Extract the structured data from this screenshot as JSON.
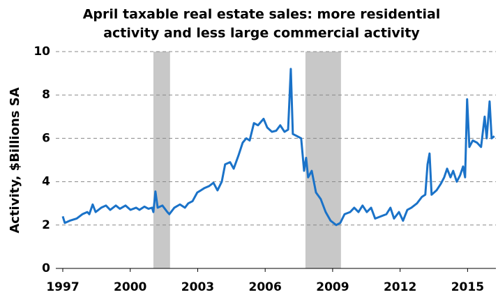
{
  "chart_data": {
    "type": "line",
    "title": [
      "April taxable real estate sales: more residential",
      "activity and less large commercial activity"
    ],
    "y_label": "Activity, $Billions SA",
    "x": [
      1997.0,
      1997.09,
      1997.31,
      1997.62,
      1997.87,
      1998.09,
      1998.18,
      1998.33,
      1998.46,
      1998.71,
      1998.92,
      1999.11,
      1999.36,
      1999.54,
      1999.79,
      2000.01,
      2000.26,
      2000.41,
      2000.63,
      2000.81,
      2000.97,
      2001.03,
      2001.12,
      2001.22,
      2001.43,
      2001.65,
      2001.74,
      2001.96,
      2002.21,
      2002.43,
      2002.58,
      2002.77,
      2002.98,
      2003.14,
      2003.29,
      2003.51,
      2003.7,
      2003.88,
      2004.07,
      2004.22,
      2004.44,
      2004.6,
      2004.81,
      2005.0,
      2005.16,
      2005.31,
      2005.5,
      2005.68,
      2005.93,
      2006.09,
      2006.3,
      2006.49,
      2006.67,
      2006.86,
      2007.02,
      2007.14,
      2007.23,
      2007.42,
      2007.6,
      2007.73,
      2007.82,
      2007.91,
      2008.07,
      2008.26,
      2008.47,
      2008.69,
      2008.91,
      2009.16,
      2009.34,
      2009.53,
      2009.78,
      2009.96,
      2010.15,
      2010.33,
      2010.52,
      2010.71,
      2010.89,
      2011.14,
      2011.39,
      2011.57,
      2011.73,
      2011.95,
      2012.13,
      2012.32,
      2012.5,
      2012.75,
      2012.97,
      2013.12,
      2013.22,
      2013.31,
      2013.4,
      2013.62,
      2013.81,
      2013.96,
      2014.09,
      2014.24,
      2014.36,
      2014.52,
      2014.67,
      2014.8,
      2014.89,
      2014.98,
      2015.08,
      2015.23,
      2015.42,
      2015.6,
      2015.76,
      2015.85,
      2015.98,
      2016.07,
      2016.19
    ],
    "series": [
      {
        "color": "#1a72c8",
        "values": [
          2.4,
          2.1,
          2.2,
          2.3,
          2.5,
          2.6,
          2.5,
          2.95,
          2.6,
          2.8,
          2.9,
          2.7,
          2.9,
          2.75,
          2.9,
          2.7,
          2.8,
          2.7,
          2.85,
          2.75,
          2.8,
          2.6,
          3.55,
          2.8,
          2.9,
          2.6,
          2.5,
          2.8,
          2.95,
          2.8,
          3.0,
          3.1,
          3.5,
          3.6,
          3.7,
          3.8,
          3.95,
          3.6,
          4.0,
          4.8,
          4.9,
          4.6,
          5.2,
          5.8,
          6.0,
          5.9,
          6.7,
          6.6,
          6.9,
          6.5,
          6.3,
          6.35,
          6.6,
          6.3,
          6.4,
          9.2,
          6.2,
          6.1,
          6.0,
          4.5,
          5.1,
          4.2,
          4.5,
          3.5,
          3.2,
          2.6,
          2.2,
          2.0,
          2.1,
          2.5,
          2.6,
          2.8,
          2.6,
          2.9,
          2.6,
          2.8,
          2.3,
          2.4,
          2.5,
          2.8,
          2.3,
          2.6,
          2.2,
          2.7,
          2.8,
          3.0,
          3.3,
          3.4,
          4.8,
          5.3,
          3.4,
          3.6,
          3.9,
          4.2,
          4.6,
          4.2,
          4.5,
          4.0,
          4.3,
          4.7,
          4.2,
          7.8,
          5.6,
          5.9,
          5.8,
          5.6,
          7.0,
          6.0,
          7.7,
          6.0,
          6.1
        ]
      }
    ],
    "shaded_periods": [
      [
        2001.03,
        2001.77
      ],
      [
        2007.79,
        2009.37
      ]
    ],
    "shade_color": "#c8c8c8",
    "xlim": [
      1996.69,
      2016.26
    ],
    "xticks": [
      1997,
      2000,
      2003,
      2006,
      2009,
      2012,
      2015
    ],
    "ylim": [
      0,
      10
    ],
    "yticks": [
      0,
      2,
      4,
      6,
      8,
      10
    ],
    "grid": true
  }
}
